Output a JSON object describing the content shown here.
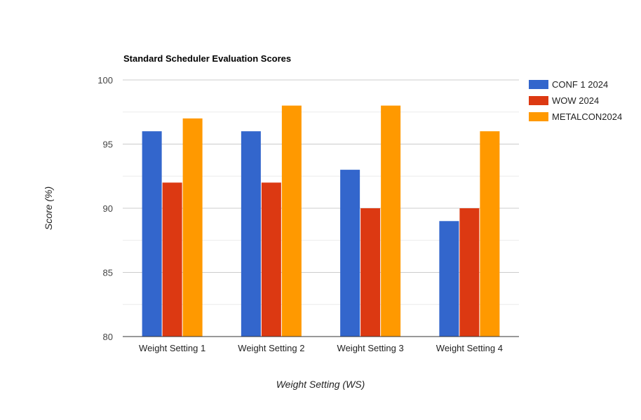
{
  "chart_data": {
    "type": "bar",
    "title": "Standard Scheduler Evaluation Scores",
    "xlabel": "Weight Setting (WS)",
    "ylabel": "Score (%)",
    "categories": [
      "Weight Setting 1",
      "Weight Setting 2",
      "Weight Setting 3",
      "Weight Setting 4"
    ],
    "ylim": [
      80,
      100
    ],
    "yticks": [
      "80",
      "85",
      "90",
      "95",
      "100"
    ],
    "series": [
      {
        "name": "CONF 1 2024",
        "color": "#3366cc",
        "values": [
          96,
          96,
          93,
          89
        ]
      },
      {
        "name": "WOW 2024",
        "color": "#dc3912",
        "values": [
          92,
          92,
          90,
          90
        ]
      },
      {
        "name": "METALCON2024",
        "color": "#ff9900",
        "values": [
          97,
          98,
          98,
          96
        ]
      }
    ],
    "grid": true,
    "legend": "right"
  }
}
